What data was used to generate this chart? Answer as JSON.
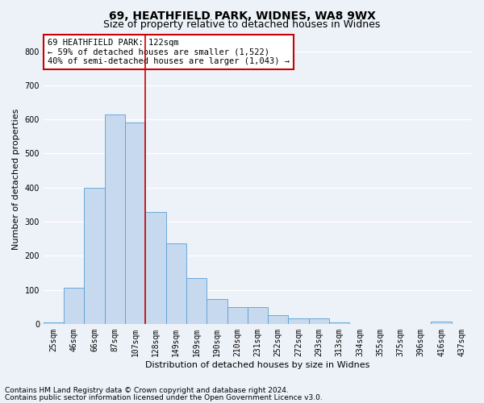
{
  "title1": "69, HEATHFIELD PARK, WIDNES, WA8 9WX",
  "title2": "Size of property relative to detached houses in Widnes",
  "xlabel": "Distribution of detached houses by size in Widnes",
  "ylabel": "Number of detached properties",
  "categories": [
    "25sqm",
    "46sqm",
    "66sqm",
    "87sqm",
    "107sqm",
    "128sqm",
    "149sqm",
    "169sqm",
    "190sqm",
    "210sqm",
    "231sqm",
    "252sqm",
    "272sqm",
    "293sqm",
    "313sqm",
    "334sqm",
    "355sqm",
    "375sqm",
    "396sqm",
    "416sqm",
    "437sqm"
  ],
  "values": [
    5,
    107,
    400,
    614,
    591,
    329,
    236,
    135,
    73,
    50,
    50,
    25,
    15,
    15,
    5,
    0,
    0,
    0,
    0,
    7,
    0
  ],
  "bar_color": "#c6d9ee",
  "bar_edge_color": "#5a9fd4",
  "vline_x_index": 4.5,
  "annotation_text": "69 HEATHFIELD PARK: 122sqm\n← 59% of detached houses are smaller (1,522)\n40% of semi-detached houses are larger (1,043) →",
  "annotation_box_color": "#ffffff",
  "annotation_box_edge_color": "#cc0000",
  "footnote1": "Contains HM Land Registry data © Crown copyright and database right 2024.",
  "footnote2": "Contains public sector information licensed under the Open Government Licence v3.0.",
  "ylim": [
    0,
    850
  ],
  "yticks": [
    0,
    100,
    200,
    300,
    400,
    500,
    600,
    700,
    800
  ],
  "background_color": "#edf2f8",
  "plot_background_color": "#edf2f8",
  "grid_color": "#ffffff",
  "title1_fontsize": 10,
  "title2_fontsize": 9,
  "xlabel_fontsize": 8,
  "ylabel_fontsize": 8,
  "tick_fontsize": 7,
  "annotation_fontsize": 7.5,
  "footnote_fontsize": 6.5
}
